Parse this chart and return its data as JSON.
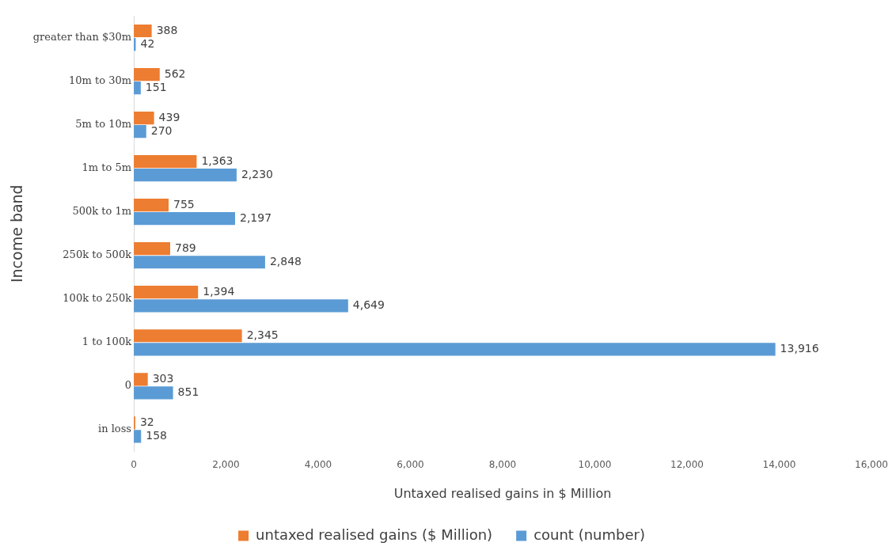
{
  "chart_data": {
    "type": "bar",
    "orientation": "horizontal",
    "xlabel": "Untaxed realised gains in $ Million",
    "ylabel": "Income band",
    "categories": [
      "greater than $30m",
      "10m to 30m",
      "5m to 10m",
      "1m to 5m",
      "500k to 1m",
      "250k to 500k",
      "100k to 250k",
      "1 to 100k",
      "0",
      "in loss"
    ],
    "series": [
      {
        "name": "untaxed realised gains ($ Million)",
        "color": "#ed7d31",
        "values": [
          388,
          562,
          439,
          1363,
          755,
          789,
          1394,
          2345,
          303,
          32
        ],
        "value_labels": [
          "388",
          "562",
          "439",
          "1,363",
          "755",
          "789",
          "1,394",
          "2,345",
          "303",
          "32"
        ]
      },
      {
        "name": "count (number)",
        "color": "#5b9bd5",
        "values": [
          42,
          151,
          270,
          2230,
          2197,
          2848,
          4649,
          13916,
          851,
          158
        ],
        "value_labels": [
          "42",
          "151",
          "270",
          "2,230",
          "2,197",
          "2,848",
          "4,649",
          "13,916",
          "851",
          "158"
        ]
      }
    ],
    "xlim": [
      0,
      16000
    ],
    "xticks": [
      0,
      {
        "value": 2000,
        "label": "2,000"
      },
      {
        "value": 4000,
        "label": "4,000"
      },
      {
        "value": 6000,
        "label": "6,000"
      },
      {
        "value": 8000,
        "label": "8,000"
      },
      {
        "value": 10000,
        "label": "10,000"
      },
      {
        "value": 12000,
        "label": "12,000"
      },
      {
        "value": 14000,
        "label": "14,000"
      },
      {
        "value": 16000,
        "label": "16,000"
      }
    ],
    "legend": "bottom"
  }
}
